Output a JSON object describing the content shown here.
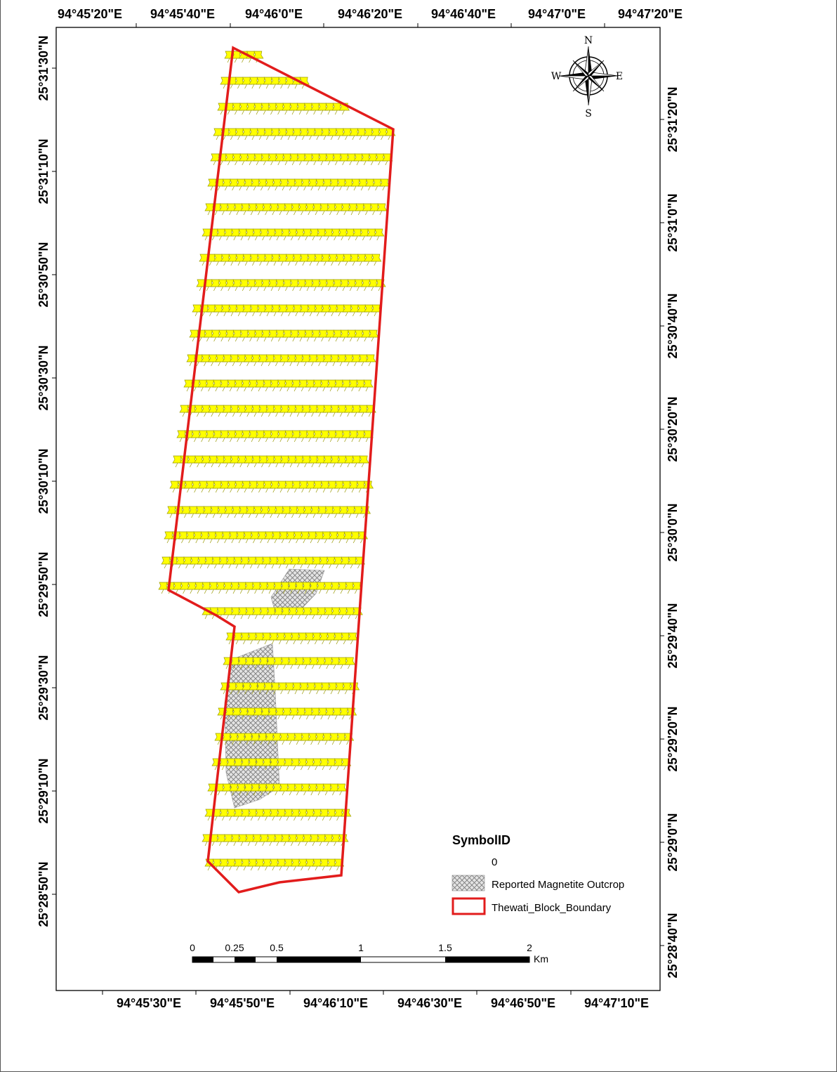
{
  "graticule": {
    "top_labels": [
      "94°45'20\"E",
      "94°45'40\"E",
      "94°46'0\"E",
      "94°46'20\"E",
      "94°46'40\"E",
      "94°47'0\"E",
      "94°47'20\"E"
    ],
    "bottom_labels": [
      "94°45'30\"E",
      "94°45'50\"E",
      "94°46'10\"E",
      "94°46'30\"E",
      "94°46'50\"E",
      "94°47'10\"E"
    ],
    "left_labels": [
      "25°31'30\"N",
      "25°31'10\"N",
      "25°30'50\"N",
      "25°30'30\"N",
      "25°30'10\"N",
      "25°29'50\"N",
      "25°29'30\"N",
      "25°29'10\"N",
      "25°28'50\"N"
    ],
    "right_labels": [
      "25°31'20\"N",
      "25°31'0\"N",
      "25°30'40\"N",
      "25°30'20\"N",
      "25°30'0\"N",
      "25°29'40\"N",
      "25°29'20\"N",
      "25°29'0\"N",
      "25°28'40\"N"
    ]
  },
  "compass": {
    "n": "N",
    "s": "S",
    "e": "E",
    "w": "W"
  },
  "legend": {
    "title": "SymbolID",
    "value_label": "0",
    "outcrop_label": "Reported Magnetite Outcrop",
    "boundary_label": "Thewati_Block_Boundary"
  },
  "scalebar": {
    "labels": [
      "0",
      "0.25",
      "0.5",
      "1",
      "1.5",
      "2"
    ],
    "unit": "Km"
  },
  "colors": {
    "boundary": "#e21c1c",
    "pin_fill": "#ffff00",
    "pin_stroke": "#9a9a00",
    "outcrop_fill": "#d8d8d8"
  },
  "symbols": {
    "pin_icon": "pushpin-icon",
    "compass_icon": "compass-rose-icon"
  }
}
